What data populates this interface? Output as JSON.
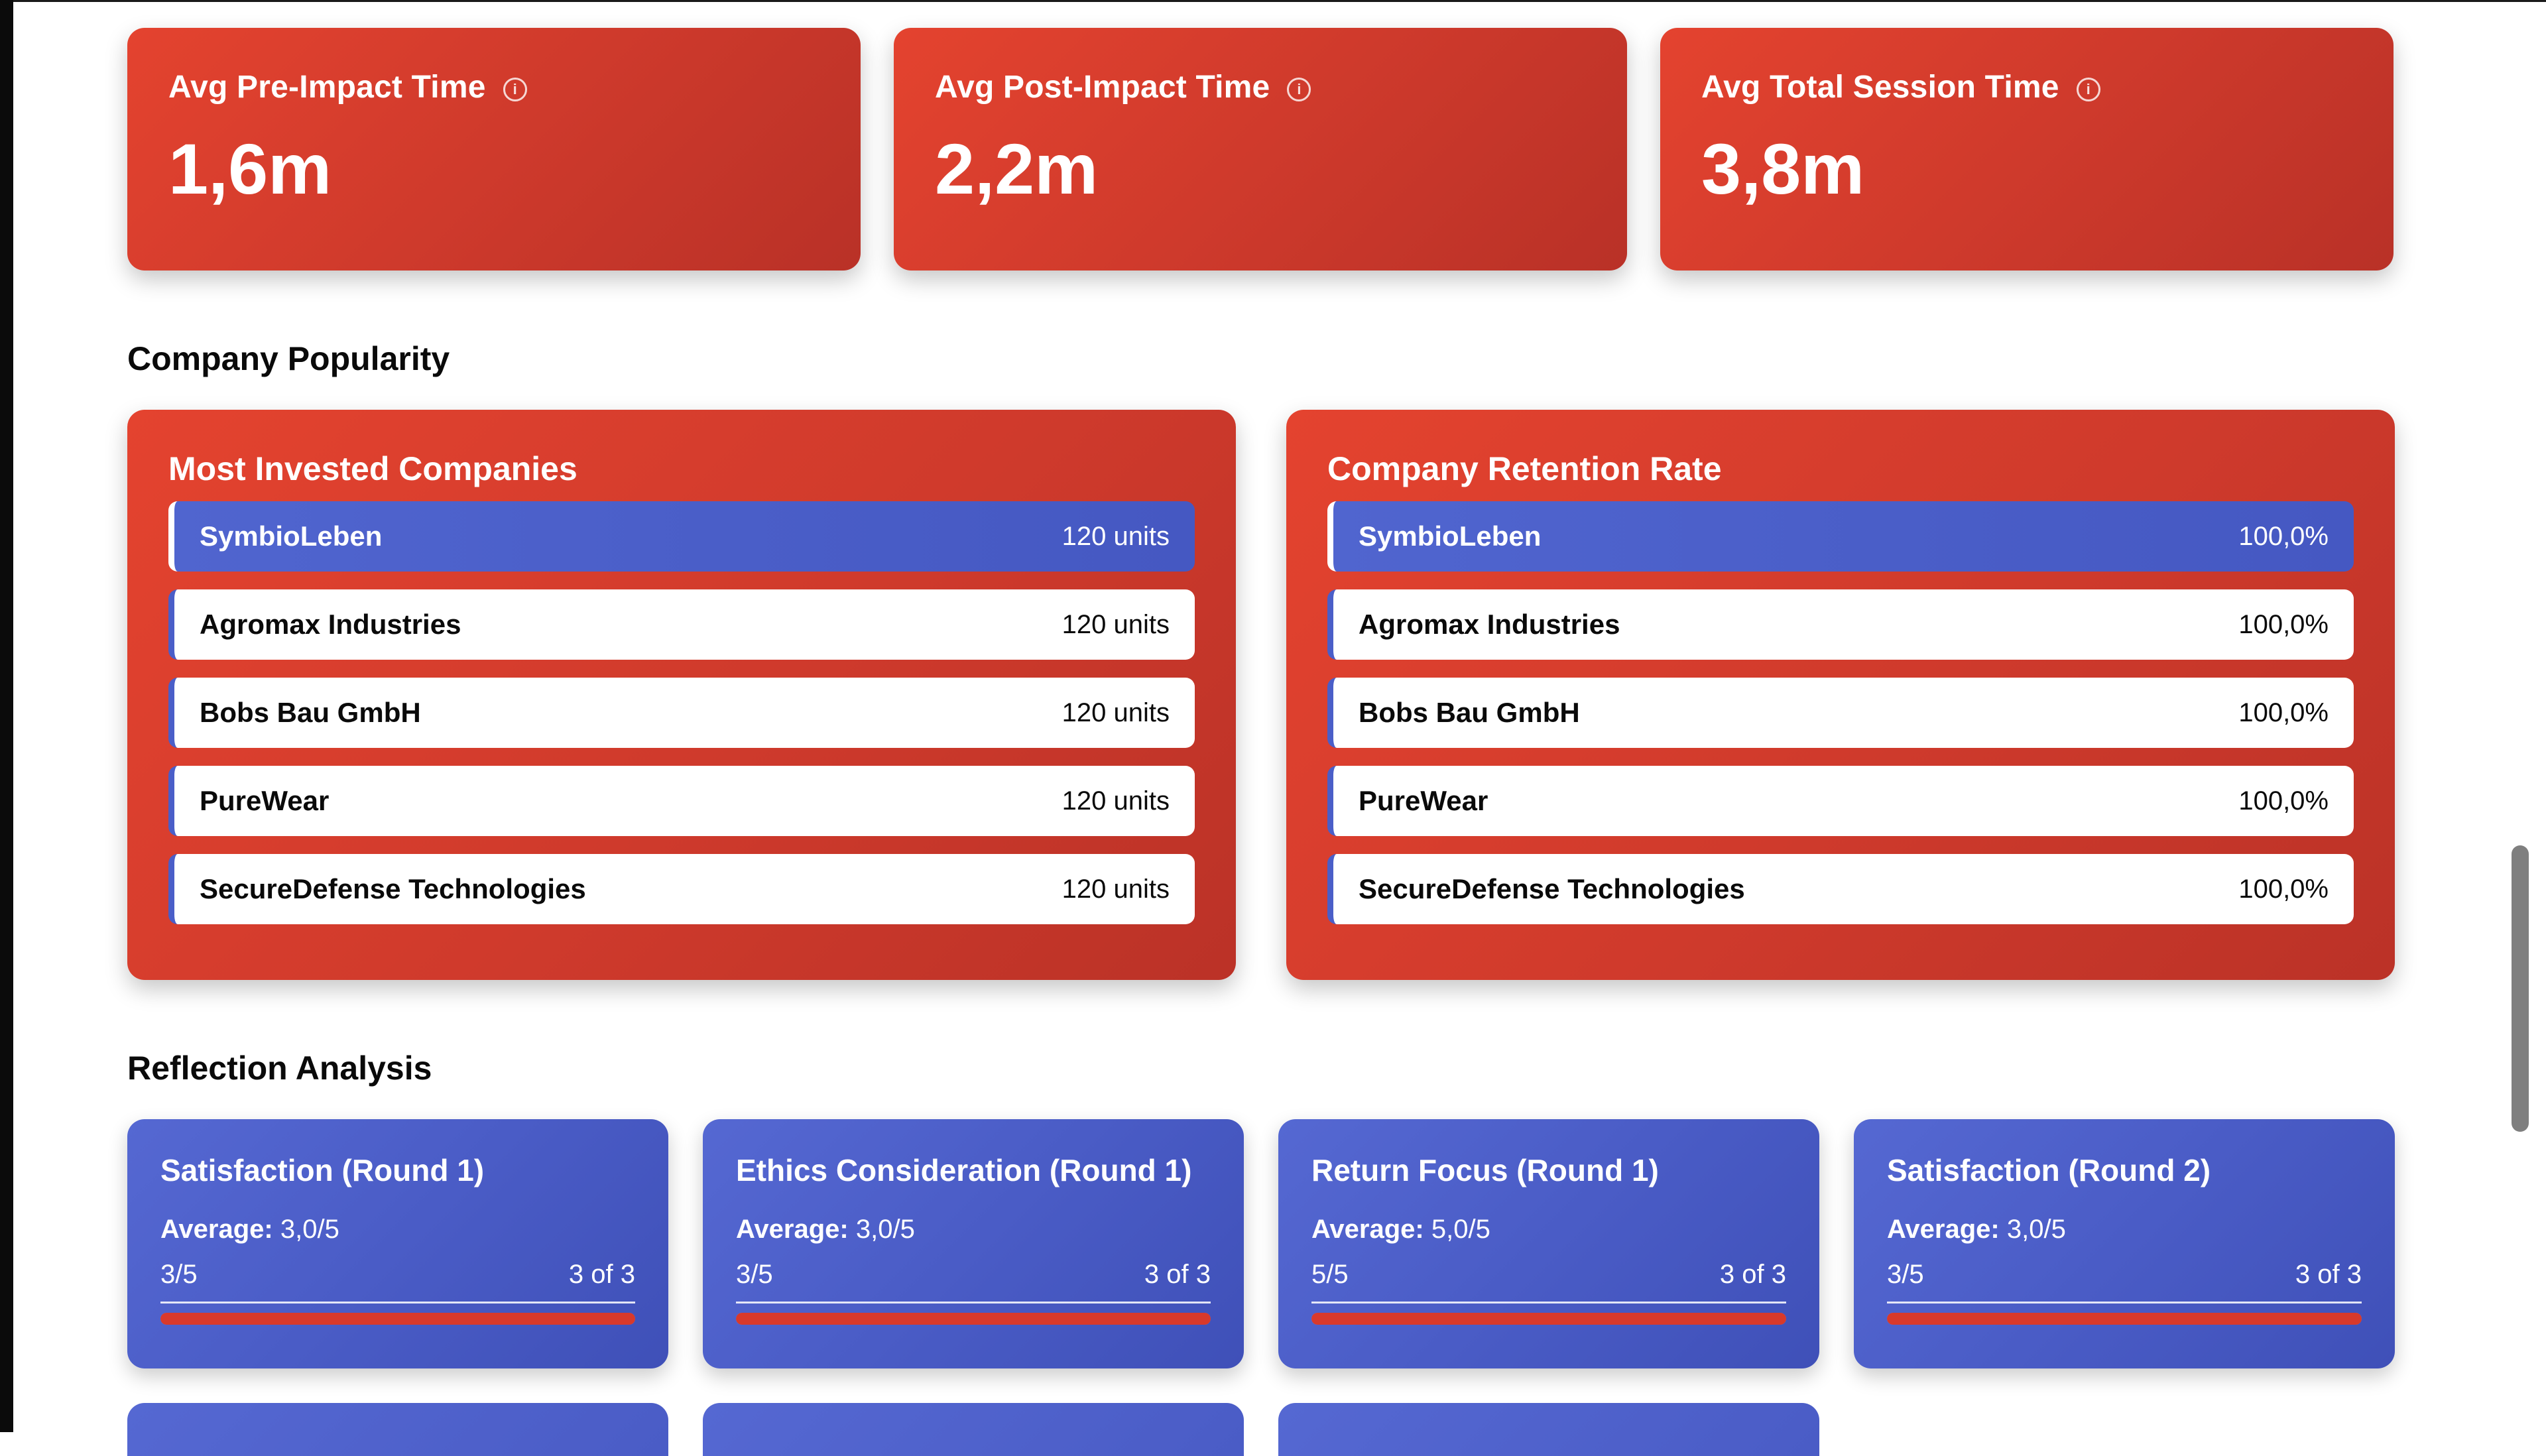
{
  "stats": [
    {
      "title": "Avg Pre-Impact Time",
      "value": "1,6m",
      "icon": "info-icon"
    },
    {
      "title": "Avg Post-Impact Time",
      "value": "2,2m",
      "icon": "info-icon"
    },
    {
      "title": "Avg Total Session Time",
      "value": "3,8m",
      "icon": "info-icon"
    }
  ],
  "info_glyph": "i",
  "company_popularity": {
    "heading": "Company Popularity",
    "most_invested": {
      "title": "Most Invested Companies",
      "rows": [
        {
          "name": "SymbioLeben",
          "value": "120 units"
        },
        {
          "name": "Agromax Industries",
          "value": "120 units"
        },
        {
          "name": "Bobs Bau GmbH",
          "value": "120 units"
        },
        {
          "name": "PureWear",
          "value": "120 units"
        },
        {
          "name": "SecureDefense Technologies",
          "value": "120 units"
        }
      ]
    },
    "retention": {
      "title": "Company Retention Rate",
      "rows": [
        {
          "name": "SymbioLeben",
          "value": "100,0%"
        },
        {
          "name": "Agromax Industries",
          "value": "100,0%"
        },
        {
          "name": "Bobs Bau GmbH",
          "value": "100,0%"
        },
        {
          "name": "PureWear",
          "value": "100,0%"
        },
        {
          "name": "SecureDefense Technologies",
          "value": "100,0%"
        }
      ]
    }
  },
  "reflection": {
    "heading": "Reflection Analysis",
    "average_label": "Average:",
    "cards": [
      {
        "title": "Satisfaction (Round 1)",
        "average": "3,0/5",
        "score": "3/5",
        "count": "3 of 3",
        "fill": 1.0
      },
      {
        "title": "Ethics Consideration (Round 1)",
        "average": "3,0/5",
        "score": "3/5",
        "count": "3 of 3",
        "fill": 1.0
      },
      {
        "title": "Return Focus (Round 1)",
        "average": "5,0/5",
        "score": "5/5",
        "count": "3 of 3",
        "fill": 1.0
      },
      {
        "title": "Satisfaction (Round 2)",
        "average": "3,0/5",
        "score": "3/5",
        "count": "3 of 3",
        "fill": 1.0
      }
    ]
  },
  "colors": {
    "card_red": "#d33c2d",
    "card_blue": "#4a5cc6",
    "bar_red": "#d8392b"
  }
}
